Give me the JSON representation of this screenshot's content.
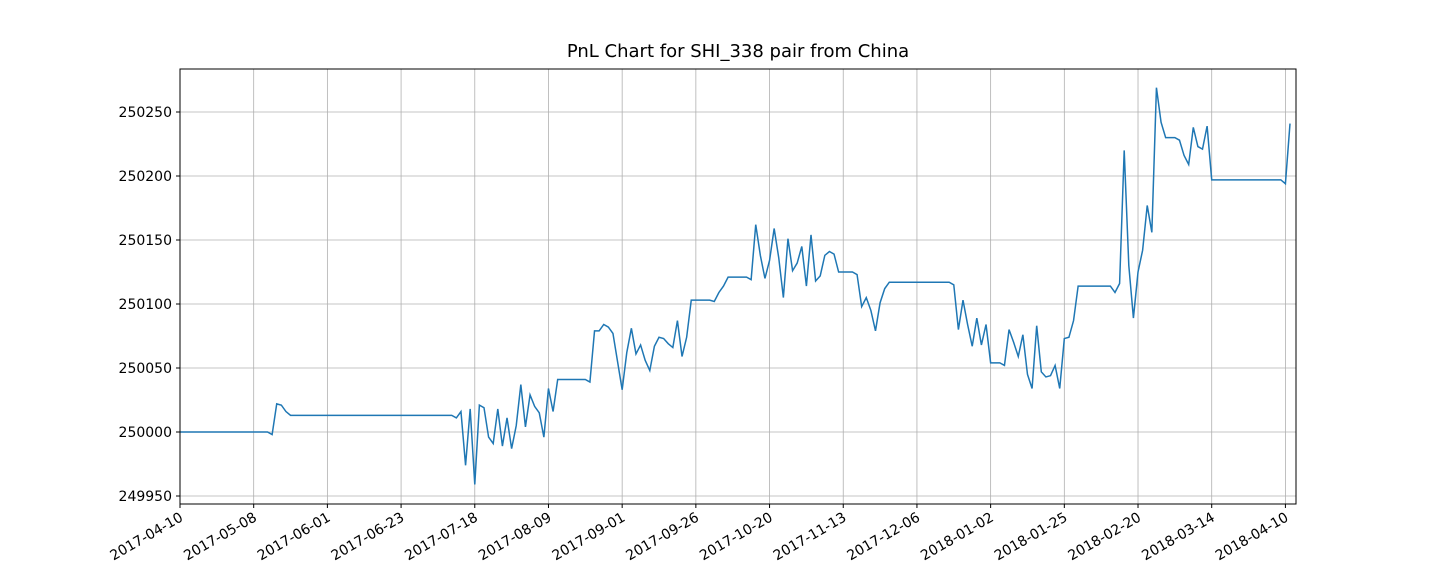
{
  "chart_data": {
    "type": "line",
    "title": "PnL Chart for SHI_338 pair from China",
    "x": [
      0,
      19,
      20,
      21,
      22,
      23,
      24,
      59,
      60,
      61,
      62,
      63,
      64,
      65,
      66,
      67,
      68,
      69,
      70,
      71,
      72,
      73,
      74,
      75,
      76,
      77,
      78,
      79,
      80,
      81,
      82,
      88,
      89,
      90,
      91,
      92,
      93,
      94,
      95,
      96,
      97,
      98,
      99,
      100,
      101,
      102,
      103,
      104,
      105,
      106,
      107,
      108,
      109,
      110,
      111,
      115,
      116,
      117,
      118,
      119,
      123,
      124,
      125,
      126,
      127,
      128,
      129,
      130,
      131,
      132,
      133,
      134,
      135,
      136,
      137,
      138,
      139,
      140,
      141,
      142,
      143,
      146,
      147,
      148,
      149,
      150,
      151,
      152,
      153,
      154,
      167,
      168,
      169,
      170,
      171,
      172,
      173,
      174,
      175,
      176,
      178,
      179,
      180,
      181,
      182,
      183,
      184,
      185,
      186,
      187,
      188,
      189,
      190,
      191,
      192,
      193,
      194,
      195,
      202,
      203,
      204,
      205,
      206,
      207,
      208,
      209,
      210,
      211,
      212,
      213,
      214,
      216,
      217,
      218,
      219,
      220,
      221,
      222,
      223,
      224,
      239,
      240,
      241
    ],
    "series": [
      {
        "color": "#1f77b4",
        "values": [
          250000,
          250000,
          249998,
          250022,
          250021,
          250016,
          250013,
          250013,
          250011,
          250016,
          249974,
          250018,
          249959,
          250021,
          250019,
          249996,
          249991,
          250018,
          249989,
          250011,
          249987,
          250005,
          250037,
          250004,
          250029,
          250020,
          250015,
          249996,
          250034,
          250016,
          250041,
          250041,
          250039,
          250079,
          250079,
          250084,
          250082,
          250077,
          250055,
          250033,
          250062,
          250081,
          250061,
          250068,
          250056,
          250048,
          250067,
          250074,
          250073,
          250069,
          250066,
          250087,
          250059,
          250074,
          250103,
          250103,
          250102,
          250109,
          250114,
          250121,
          250121,
          250119,
          250162,
          250138,
          250120,
          250134,
          250159,
          250136,
          250105,
          250151,
          250126,
          250132,
          250145,
          250114,
          250154,
          250118,
          250122,
          250138,
          250141,
          250139,
          250125,
          250125,
          250123,
          250098,
          250105,
          250095,
          250079,
          250101,
          250112,
          250117,
          250117,
          250115,
          250080,
          250103,
          250084,
          250067,
          250089,
          250068,
          250084,
          250054,
          250054,
          250052,
          250080,
          250070,
          250059,
          250076,
          250045,
          250034,
          250083,
          250047,
          250043,
          250044,
          250052,
          250034,
          250073,
          250074,
          250087,
          250114,
          250114,
          250109,
          250116,
          250220,
          250130,
          250089,
          250125,
          250142,
          250177,
          250156,
          250269,
          250242,
          250230,
          250230,
          250228,
          250216,
          250209,
          250238,
          250223,
          250221,
          250239,
          250197,
          250197,
          250194,
          250241
        ]
      }
    ],
    "xlim": [
      0,
      242.3
    ],
    "xticks": [
      {
        "value": 0,
        "label": "2017-04-10"
      },
      {
        "value": 16,
        "label": "2017-05-08"
      },
      {
        "value": 32,
        "label": "2017-06-01"
      },
      {
        "value": 48,
        "label": "2017-06-23"
      },
      {
        "value": 64,
        "label": "2017-07-18"
      },
      {
        "value": 80,
        "label": "2017-08-09"
      },
      {
        "value": 96,
        "label": "2017-09-01"
      },
      {
        "value": 112,
        "label": "2017-09-26"
      },
      {
        "value": 128,
        "label": "2017-10-20"
      },
      {
        "value": 144,
        "label": "2017-11-13"
      },
      {
        "value": 160,
        "label": "2017-12-06"
      },
      {
        "value": 176,
        "label": "2018-01-02"
      },
      {
        "value": 192,
        "label": "2018-01-25"
      },
      {
        "value": 208,
        "label": "2018-02-20"
      },
      {
        "value": 224,
        "label": "2018-03-14"
      },
      {
        "value": 240,
        "label": "2018-04-10"
      }
    ],
    "ylim": [
      249943.75,
      250283.6
    ],
    "yticks": [
      249950,
      250000,
      250050,
      250100,
      250150,
      250200,
      250250
    ],
    "grid": true
  }
}
